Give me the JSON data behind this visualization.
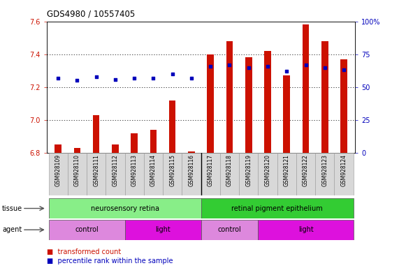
{
  "title": "GDS4980 / 10557405",
  "samples": [
    "GSM928109",
    "GSM928110",
    "GSM928111",
    "GSM928112",
    "GSM928113",
    "GSM928114",
    "GSM928115",
    "GSM928116",
    "GSM928117",
    "GSM928118",
    "GSM928119",
    "GSM928120",
    "GSM928121",
    "GSM928122",
    "GSM928123",
    "GSM928124"
  ],
  "red_values": [
    6.85,
    6.83,
    7.03,
    6.85,
    6.92,
    6.94,
    7.12,
    6.81,
    7.4,
    7.48,
    7.38,
    7.42,
    7.27,
    7.58,
    7.48,
    7.37
  ],
  "blue_values": [
    57,
    55,
    58,
    56,
    57,
    57,
    60,
    57,
    66,
    67,
    65,
    66,
    62,
    67,
    65,
    63
  ],
  "ylim_left": [
    6.8,
    7.6
  ],
  "ylim_right": [
    0,
    100
  ],
  "yticks_left": [
    6.8,
    7.0,
    7.2,
    7.4,
    7.6
  ],
  "yticks_right": [
    0,
    25,
    50,
    75,
    100
  ],
  "bar_color": "#cc1100",
  "dot_color": "#0000bb",
  "grid_color": "#000000",
  "tissue_groups": [
    {
      "label": "neurosensory retina",
      "start": 0,
      "end": 7,
      "color": "#88ee88"
    },
    {
      "label": "retinal pigment epithelium",
      "start": 8,
      "end": 15,
      "color": "#33cc33"
    }
  ],
  "agent_groups": [
    {
      "label": "control",
      "start": 0,
      "end": 3,
      "color": "#dd88dd"
    },
    {
      "label": "light",
      "start": 4,
      "end": 7,
      "color": "#dd11dd"
    },
    {
      "label": "control",
      "start": 8,
      "end": 10,
      "color": "#dd88dd"
    },
    {
      "label": "light",
      "start": 11,
      "end": 15,
      "color": "#dd11dd"
    }
  ],
  "tissue_label": "tissue",
  "agent_label": "agent",
  "legend_items": [
    {
      "color": "#cc1100",
      "label": "transformed count"
    },
    {
      "color": "#0000bb",
      "label": "percentile rank within the sample"
    }
  ],
  "bar_width": 0.35,
  "bg_color": "#ffffff",
  "left_axis_color": "#cc1100",
  "right_axis_color": "#0000bb",
  "grid_yticks": [
    7.0,
    7.2,
    7.4
  ],
  "xticklabel_bg": "#d8d8d8"
}
